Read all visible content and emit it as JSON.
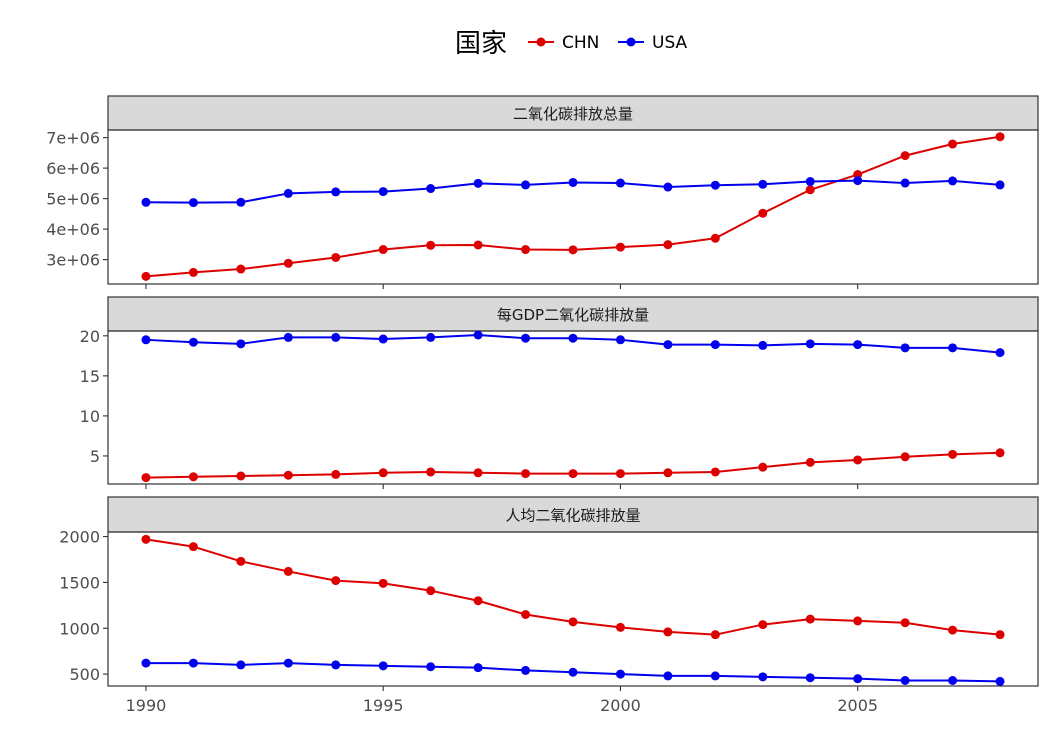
{
  "chart_data": {
    "type": "line",
    "legend": {
      "title": "国家",
      "position": "top",
      "entries": [
        {
          "name": "CHN",
          "color": "#dd0000"
        },
        {
          "name": "USA",
          "color": "#0000ee"
        }
      ]
    },
    "x": [
      1990,
      1991,
      1992,
      1993,
      1994,
      1995,
      1996,
      1997,
      1998,
      1999,
      2000,
      2001,
      2002,
      2003,
      2004,
      2005,
      2006,
      2007,
      2008
    ],
    "x_ticks": [
      1990,
      1995,
      2000,
      2005
    ],
    "x_tick_labels": [
      "1990",
      "1995",
      "2000",
      "2005"
    ],
    "xlim": [
      1989.2,
      2008.8
    ],
    "panels": [
      {
        "title": "二氧化碳排放总量",
        "ylim": [
          2200000,
          7250000
        ],
        "y_ticks": [
          3000000,
          4000000,
          5000000,
          6000000,
          7000000
        ],
        "y_tick_labels": [
          "3e+06",
          "4e+06",
          "5e+06",
          "6e+06",
          "7e+06"
        ],
        "series": [
          {
            "name": "CHN",
            "values": [
              2450000,
              2580000,
              2690000,
              2880000,
              3070000,
              3330000,
              3470000,
              3480000,
              3330000,
              3320000,
              3410000,
              3490000,
              3700000,
              4520000,
              5290000,
              5790000,
              6410000,
              6790000,
              7030000
            ]
          },
          {
            "name": "USA",
            "values": [
              4880000,
              4870000,
              4880000,
              5170000,
              5220000,
              5230000,
              5330000,
              5500000,
              5450000,
              5530000,
              5510000,
              5380000,
              5440000,
              5470000,
              5560000,
              5590000,
              5510000,
              5580000,
              5450000
            ]
          }
        ]
      },
      {
        "title": "每GDP二氧化碳排放量",
        "ylim": [
          1.5,
          20.6
        ],
        "y_ticks": [
          5,
          10,
          15,
          20
        ],
        "y_tick_labels": [
          "5",
          "10",
          "15",
          "20"
        ],
        "series": [
          {
            "name": "CHN",
            "values": [
              2.3,
              2.4,
              2.5,
              2.6,
              2.7,
              2.9,
              3.0,
              2.9,
              2.8,
              2.8,
              2.8,
              2.9,
              3.0,
              3.6,
              4.2,
              4.5,
              4.9,
              5.2,
              5.4
            ]
          },
          {
            "name": "USA",
            "values": [
              19.5,
              19.2,
              19.0,
              19.8,
              19.8,
              19.6,
              19.8,
              20.1,
              19.7,
              19.7,
              19.5,
              18.9,
              18.9,
              18.8,
              19.0,
              18.9,
              18.5,
              18.5,
              17.9
            ]
          }
        ]
      },
      {
        "title": "人均二氧化碳排放量",
        "ylim": [
          370,
          2050
        ],
        "y_ticks": [
          500,
          1000,
          1500,
          2000
        ],
        "y_tick_labels": [
          "500",
          "1000",
          "1500",
          "2000"
        ],
        "series": [
          {
            "name": "CHN",
            "values": [
              1970,
              1890,
              1730,
              1620,
              1520,
              1490,
              1410,
              1300,
              1150,
              1070,
              1010,
              960,
              930,
              1040,
              1100,
              1080,
              1060,
              980,
              930
            ]
          },
          {
            "name": "USA",
            "values": [
              620,
              620,
              600,
              620,
              600,
              590,
              580,
              570,
              540,
              520,
              500,
              480,
              480,
              470,
              460,
              450,
              430,
              430,
              420
            ]
          }
        ]
      }
    ],
    "grid": false
  }
}
